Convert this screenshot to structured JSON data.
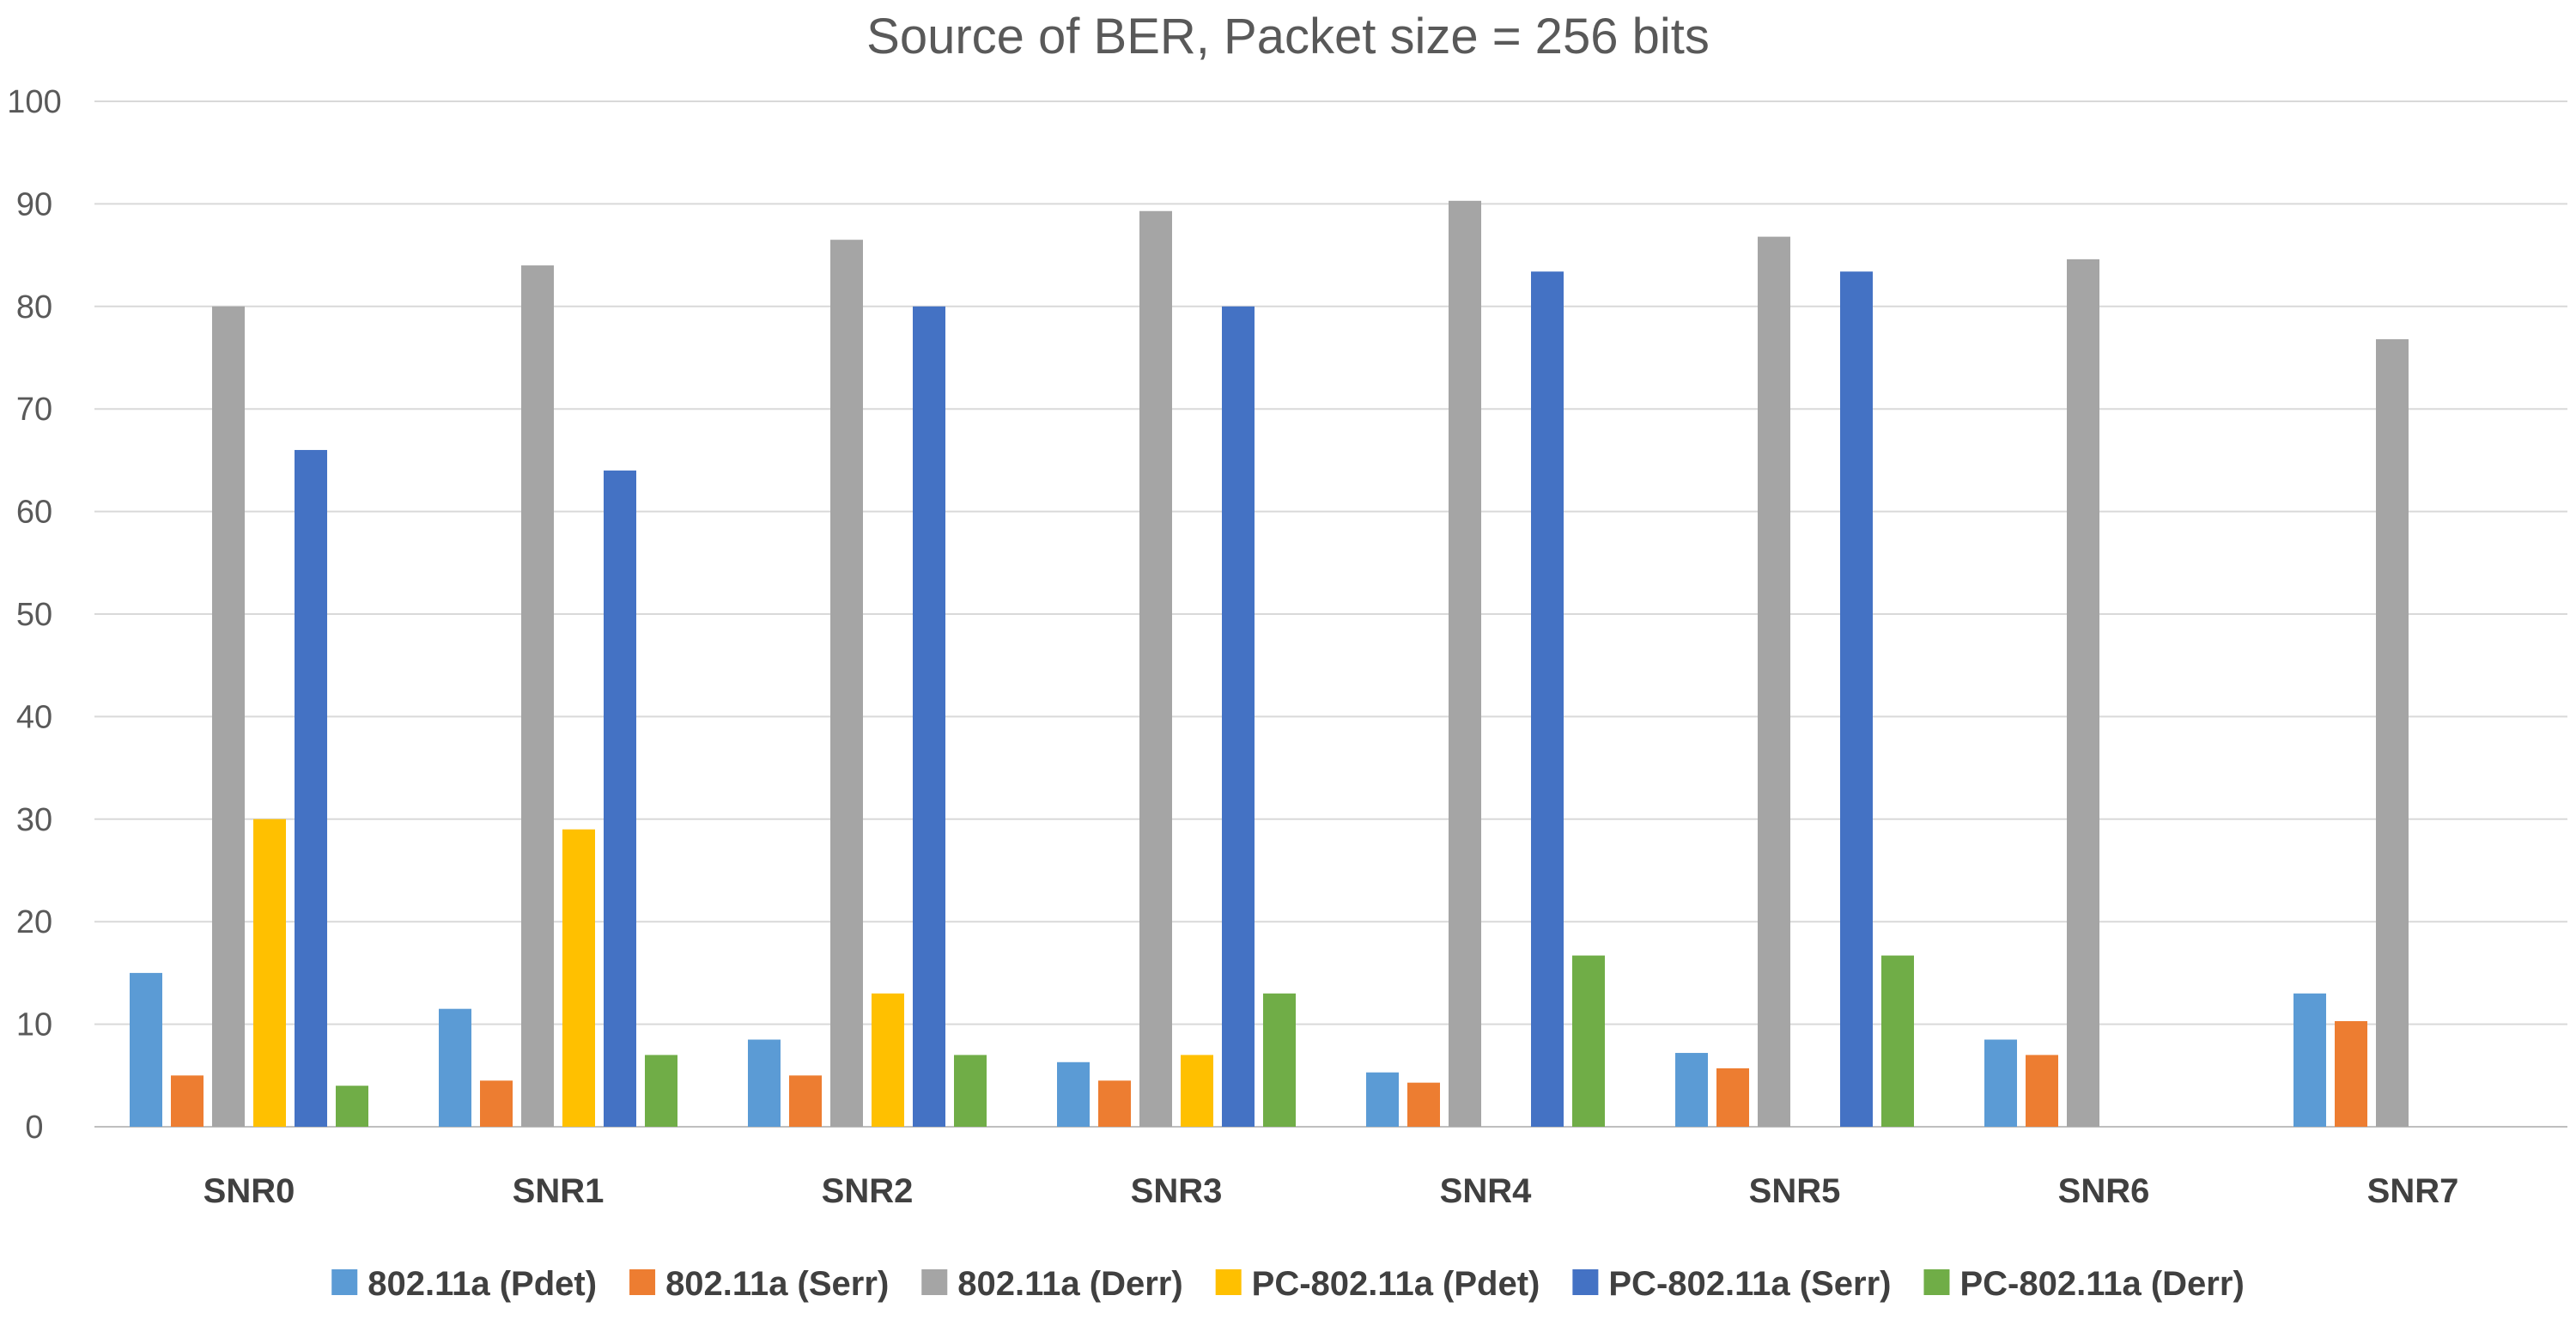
{
  "chart_data": {
    "type": "bar",
    "title": "Source of BER, Packet size = 256 bits",
    "xlabel": "",
    "ylabel": "",
    "ylim": [
      0,
      100
    ],
    "yticks": [
      0,
      10,
      20,
      30,
      40,
      50,
      60,
      70,
      80,
      90,
      100
    ],
    "grid": true,
    "legend_position": "bottom",
    "categories": [
      "SNR0",
      "SNR1",
      "SNR2",
      "SNR3",
      "SNR4",
      "SNR5",
      "SNR6",
      "SNR7"
    ],
    "series": [
      {
        "name": "802.11a (Pdet)",
        "color": "#5b9bd5",
        "values": [
          15,
          11.5,
          8.5,
          6.3,
          5.3,
          7.2,
          8.5,
          13
        ]
      },
      {
        "name": "802.11a (Serr)",
        "color": "#ed7d31",
        "values": [
          5,
          4.5,
          5,
          4.5,
          4.3,
          5.7,
          7,
          10.3
        ]
      },
      {
        "name": "802.11a (Derr)",
        "color": "#a5a5a5",
        "values": [
          80,
          84,
          86.5,
          89.3,
          90.3,
          86.8,
          84.6,
          76.8
        ]
      },
      {
        "name": "PC-802.11a (Pdet)",
        "color": "#ffc000",
        "values": [
          30,
          29,
          13,
          7,
          0,
          0,
          0,
          0
        ]
      },
      {
        "name": "PC-802.11a (Serr)",
        "color": "#4472c4",
        "values": [
          66,
          64,
          80,
          80,
          83.4,
          83.4,
          0,
          0
        ]
      },
      {
        "name": "PC-802.11a (Derr)",
        "color": "#70ad47",
        "values": [
          4,
          7,
          7,
          13,
          16.7,
          16.7,
          0,
          0
        ]
      }
    ]
  }
}
